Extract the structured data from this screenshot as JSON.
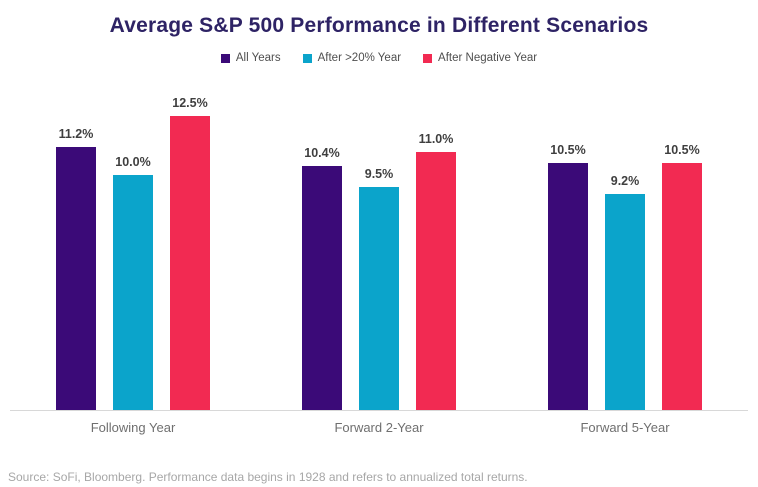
{
  "title": "Average S&P 500 Performance in Different Scenarios",
  "source": "Source: SoFi, Bloomberg. Performance data begins in 1928 and refers to annualized total returns.",
  "colors": {
    "title": "#2E2365",
    "all_years": "#3B0A78",
    "after_20_year": "#0BA4CB",
    "after_negative_year": "#F22A52",
    "axis_line": "#D8D8D8",
    "value_label": "#3F3F3F",
    "category_label": "#6F6F6F",
    "source_text": "#A7A7A7"
  },
  "chart_data": {
    "type": "bar",
    "title": "Average S&P 500 Performance in Different Scenarios",
    "categories": [
      "Following Year",
      "Forward 2-Year",
      "Forward 5-Year"
    ],
    "series": [
      {
        "name": "All Years",
        "color": "#3B0A78",
        "values": [
          11.2,
          10.4,
          10.5
        ],
        "labels": [
          "11.2%",
          "10.4%",
          "10.5%"
        ]
      },
      {
        "name": "After >20% Year",
        "color": "#0BA4CB",
        "values": [
          10.0,
          9.5,
          9.2
        ],
        "labels": [
          "10.0%",
          "9.5%",
          "9.2%"
        ]
      },
      {
        "name": "After Negative Year",
        "color": "#F22A52",
        "values": [
          12.5,
          11.0,
          10.5
        ],
        "labels": [
          "12.5%",
          "11.0%",
          "10.5%"
        ]
      }
    ],
    "xlabel": "",
    "ylabel": "",
    "ylim": [
      0,
      13.5
    ],
    "grid": false,
    "legend_position": "top",
    "value_labels_shown": true,
    "y_axis_shown": false
  }
}
